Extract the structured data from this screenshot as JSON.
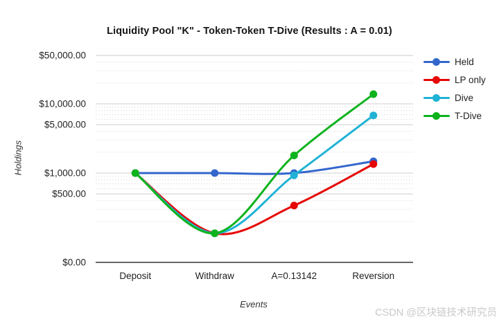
{
  "page": {
    "watermark": "CSDN @区块链技术研究员"
  },
  "chart_data": {
    "type": "line",
    "smooth": true,
    "title": "Liquidity Pool \"K\" - Token-Token T-Dive (Results : A = 0.01)",
    "xlabel": "Events",
    "ylabel": "Holdings",
    "categories": [
      "Deposit",
      "Withdraw",
      "A=0.13142",
      "Reversion"
    ],
    "series": [
      {
        "name": "Held",
        "color": "#3366cc",
        "values": [
          1000,
          1000,
          1000,
          1480
        ]
      },
      {
        "name": "LP only",
        "color": "#e60505",
        "values": [
          1000,
          135,
          340,
          1350
        ]
      },
      {
        "name": "Dive",
        "color": "#1fb2d5",
        "values": [
          1000,
          135,
          930,
          6800
        ]
      },
      {
        "name": "T-Dive",
        "color": "#0db31c",
        "values": [
          1000,
          135,
          1800,
          13800
        ]
      }
    ],
    "y_axis": {
      "scale": "log",
      "ticks": [
        {
          "value": 50000,
          "label": "$50,000.00"
        },
        {
          "value": 10000,
          "label": "$10,000.00"
        },
        {
          "value": 5000,
          "label": "$5,000.00"
        },
        {
          "value": 1000,
          "label": "$1,000.00"
        },
        {
          "value": 500,
          "label": "$500.00"
        },
        {
          "value": 0,
          "label": "$0.00"
        }
      ],
      "minor_gridlines": [
        40000,
        30000,
        20000,
        9000,
        8000,
        7000,
        6000,
        4000,
        3000,
        2000,
        900,
        800,
        700,
        600,
        400,
        300,
        200
      ]
    },
    "legend_position": "right",
    "grid": "horizontal-only"
  }
}
